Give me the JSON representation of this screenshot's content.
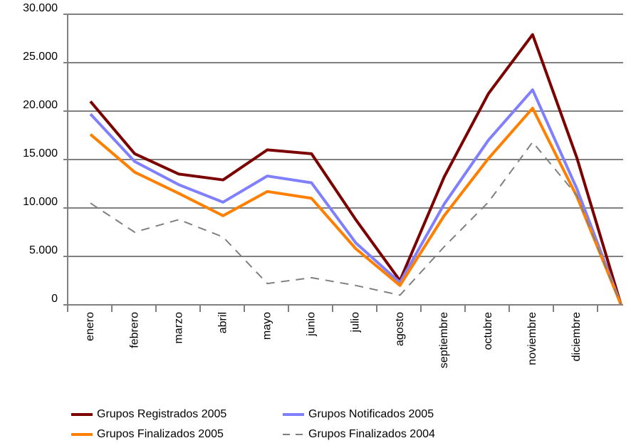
{
  "chart_data": {
    "type": "line",
    "categories": [
      "enero",
      "febrero",
      "marzo",
      "abril",
      "mayo",
      "junio",
      "julio",
      "agosto",
      "septiembre",
      "octubre",
      "noviembre",
      "diciembre",
      null
    ],
    "series": [
      {
        "name": "Grupos Registrados 2005",
        "color": "#7b0000",
        "dash": false,
        "values": [
          21000,
          15600,
          13500,
          12900,
          16000,
          15600,
          8800,
          2500,
          13200,
          21800,
          27900,
          15200,
          0
        ]
      },
      {
        "name": "Grupos Notificados 2005",
        "color": "#8080ff",
        "dash": false,
        "values": [
          19700,
          14800,
          12400,
          10600,
          13300,
          12600,
          6400,
          2300,
          10400,
          17000,
          22200,
          12000,
          0
        ]
      },
      {
        "name": "Grupos Finalizados 2005",
        "color": "#ff8000",
        "dash": false,
        "values": [
          17600,
          13700,
          11500,
          9200,
          11700,
          11000,
          5800,
          2000,
          9200,
          15100,
          20300,
          11200,
          0
        ]
      },
      {
        "name": "Grupos Finalizados 2004",
        "color": "#808080",
        "dash": true,
        "values": [
          10500,
          7500,
          8800,
          7000,
          2200,
          2800,
          2000,
          1000,
          6000,
          10600,
          16800,
          11300,
          0
        ]
      }
    ],
    "ylim": [
      0,
      30000
    ],
    "yticks": [
      0,
      {
        "value": 5000,
        "label": "5.000"
      },
      {
        "value": 10000,
        "label": "10.000"
      },
      {
        "value": 15000,
        "label": "15.000"
      },
      {
        "value": 20000,
        "label": "20.000"
      },
      {
        "value": 25000,
        "label": "25.000"
      },
      {
        "value": 30000,
        "label": "30.000"
      }
    ],
    "grid": true
  }
}
